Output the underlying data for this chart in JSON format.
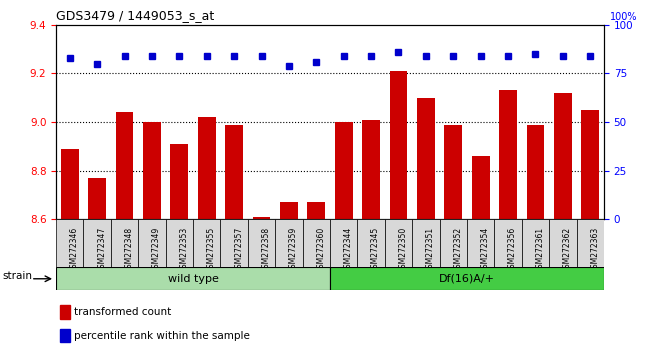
{
  "title": "GDS3479 / 1449053_s_at",
  "categories": [
    "GSM272346",
    "GSM272347",
    "GSM272348",
    "GSM272349",
    "GSM272353",
    "GSM272355",
    "GSM272357",
    "GSM272358",
    "GSM272359",
    "GSM272360",
    "GSM272344",
    "GSM272345",
    "GSM272350",
    "GSM272351",
    "GSM272352",
    "GSM272354",
    "GSM272356",
    "GSM272361",
    "GSM272362",
    "GSM272363"
  ],
  "bar_values": [
    8.89,
    8.77,
    9.04,
    9.0,
    8.91,
    9.02,
    8.99,
    8.61,
    8.67,
    8.67,
    9.0,
    9.01,
    9.21,
    9.1,
    8.99,
    8.86,
    9.13,
    8.99,
    9.12,
    9.05
  ],
  "percentile_values": [
    83,
    80,
    84,
    84,
    84,
    84,
    84,
    84,
    79,
    81,
    84,
    84,
    86,
    84,
    84,
    84,
    84,
    85,
    84,
    84
  ],
  "bar_color": "#cc0000",
  "percentile_color": "#0000cc",
  "ylim_left": [
    8.6,
    9.4
  ],
  "ylim_right": [
    0,
    100
  ],
  "yticks_left": [
    8.6,
    8.8,
    9.0,
    9.2,
    9.4
  ],
  "yticks_right": [
    0,
    25,
    50,
    75,
    100
  ],
  "grid_values": [
    8.8,
    9.0,
    9.2
  ],
  "group1_label": "wild type",
  "group2_label": "Df(16)A/+",
  "group1_count": 10,
  "group2_count": 10,
  "strain_label": "strain",
  "legend_bar_label": "transformed count",
  "legend_dot_label": "percentile rank within the sample",
  "group1_bg": "#aaddaa",
  "group2_bg": "#44cc44",
  "tick_bg": "#d8d8d8"
}
